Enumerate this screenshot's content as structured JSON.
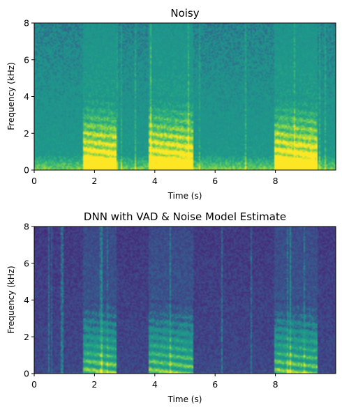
{
  "chart_data": [
    {
      "type": "heatmap",
      "title": "Noisy",
      "xlabel": "Time (s)",
      "ylabel": "Frequency (kHz)",
      "xlim": [
        0,
        10
      ],
      "ylim": [
        0,
        8
      ],
      "xticks": [
        0,
        2,
        4,
        6,
        8
      ],
      "yticks": [
        0,
        2,
        4,
        6,
        8
      ],
      "colormap": "viridis",
      "speech_segments_s": [
        [
          1.6,
          2.7
        ],
        [
          3.8,
          5.3
        ],
        [
          8.0,
          9.4
        ]
      ],
      "background_level": 0.55,
      "low_freq_noise_level": 0.85
    },
    {
      "type": "heatmap",
      "title": "DNN with VAD & Noise Model Estimate",
      "xlabel": "Time (s)",
      "ylabel": "Frequency (kHz)",
      "xlim": [
        0,
        10
      ],
      "ylim": [
        0,
        8
      ],
      "xticks": [
        0,
        2,
        4,
        6,
        8
      ],
      "yticks": [
        0,
        2,
        4,
        6,
        8
      ],
      "colormap": "viridis",
      "speech_segments_s": [
        [
          1.6,
          2.7
        ],
        [
          3.8,
          5.3
        ],
        [
          8.0,
          9.4
        ]
      ],
      "background_level": 0.25,
      "low_freq_noise_level": 0.3
    }
  ]
}
